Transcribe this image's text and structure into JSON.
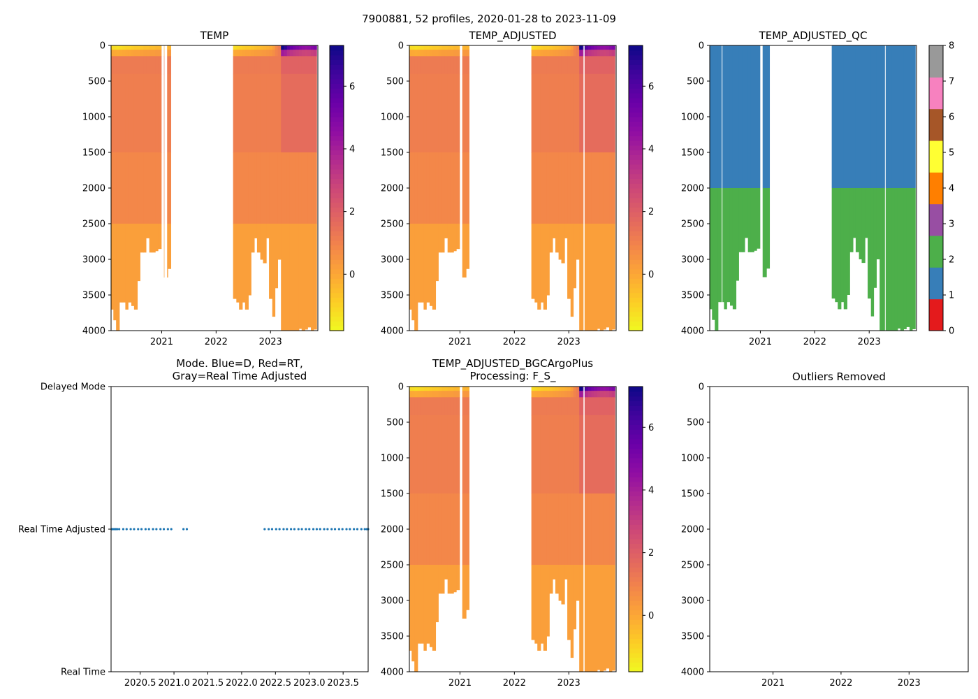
{
  "suptitle": "7900881, 52 profiles, 2020-01-28 to 2023-11-09",
  "colors": {
    "axis": "#000000",
    "mode_dots": "#1f77b4",
    "qc": [
      "#e41a1c",
      "#377eb8",
      "#4daf4a",
      "#984ea3",
      "#ff7f00",
      "#ffff33",
      "#a65628",
      "#f781bf",
      "#999999"
    ]
  },
  "chart_data": [
    {
      "id": "temp",
      "type": "heatmap",
      "title": "TEMP",
      "xlabel": "",
      "ylabel": "",
      "xlim": [
        2020.07,
        2023.87
      ],
      "ylim": [
        4000,
        0
      ],
      "xticks": [
        "2021",
        "2022",
        "2023"
      ],
      "xtick_values": [
        2021,
        2022,
        2023
      ],
      "yticks": [
        "0",
        "500",
        "1000",
        "1500",
        "2000",
        "2500",
        "3000",
        "3500",
        "4000"
      ],
      "ytick_values": [
        0,
        500,
        1000,
        1500,
        2000,
        2500,
        3000,
        3500,
        4000
      ],
      "colorbar": {
        "cmap": "plasma_r",
        "range": [
          -1.8,
          7.3
        ],
        "ticks": [
          "0",
          "2",
          "4",
          "6"
        ],
        "tick_values": [
          0,
          2,
          4,
          6
        ]
      },
      "profile_dates": [
        2020.08,
        2020.14,
        2020.19,
        2020.25,
        2020.3,
        2020.36,
        2020.41,
        2020.47,
        2020.52,
        2020.58,
        2020.63,
        2020.69,
        2020.74,
        2020.8,
        2020.85,
        2020.91,
        2020.96,
        2021.02,
        2021.07,
        2021.14,
        2022.34,
        2022.4,
        2022.45,
        2022.51,
        2022.56,
        2022.62,
        2022.67,
        2022.73,
        2022.78,
        2022.84,
        2022.89,
        2022.95,
        2023.0,
        2023.06,
        2023.11,
        2023.16,
        2023.22,
        2023.27,
        2023.33,
        2023.38,
        2023.44,
        2023.49,
        2023.55,
        2023.6,
        2023.66,
        2023.71,
        2023.77,
        2023.82
      ],
      "max_depth": [
        3700,
        3850,
        4000,
        3600,
        3600,
        3700,
        3600,
        3650,
        3700,
        3300,
        2900,
        2900,
        2700,
        2900,
        2900,
        2880,
        2850,
        null,
        3250,
        3130,
        3550,
        3600,
        3700,
        3600,
        3700,
        3500,
        2900,
        2700,
        2900,
        3000,
        3050,
        2700,
        3550,
        3800,
        3400,
        3000,
        4000,
        4000,
        4000,
        4000,
        4000,
        4000,
        3970,
        4000,
        3980,
        3950,
        4000,
        3980
      ],
      "surface_temp": [
        -1.2,
        -1.2,
        -1.3,
        -1.2,
        -1.1,
        -1.0,
        -1.0,
        -0.9,
        -0.8,
        -0.8,
        -0.7,
        -0.6,
        -0.6,
        -0.5,
        -0.5,
        -0.4,
        -0.4,
        null,
        -0.3,
        -0.3,
        -1.2,
        -1.1,
        -1.0,
        -0.9,
        -0.8,
        -0.8,
        -0.7,
        -0.6,
        -0.5,
        -0.4,
        -0.3,
        -0.2,
        -0.1,
        0.2,
        0.8,
        1.2,
        7.3,
        6.8,
        6.0,
        5.5,
        5.2,
        5.0,
        4.8,
        4.6,
        4.5,
        4.6,
        4.8,
        5.0
      ],
      "mid_temp": 1.1,
      "deep_temp": 0.2,
      "gaps": [
        [
          2021.05,
          2021.1
        ]
      ]
    },
    {
      "id": "temp_adjusted",
      "type": "heatmap",
      "title": "TEMP_ADJUSTED",
      "xlim": [
        2020.07,
        2023.87
      ],
      "ylim": [
        4000,
        0
      ],
      "xticks": [
        "2021",
        "2022",
        "2023"
      ],
      "xtick_values": [
        2021,
        2022,
        2023
      ],
      "yticks": [
        "0",
        "500",
        "1000",
        "1500",
        "2000",
        "2500",
        "3000",
        "3500",
        "4000"
      ],
      "ytick_values": [
        0,
        500,
        1000,
        1500,
        2000,
        2500,
        3000,
        3500,
        4000
      ],
      "colorbar": {
        "cmap": "plasma_r",
        "range": [
          -1.8,
          7.3
        ],
        "ticks": [
          "0",
          "2",
          "4",
          "6"
        ],
        "tick_values": [
          0,
          2,
          4,
          6
        ]
      },
      "gaps": [
        [
          2023.27,
          2023.29
        ]
      ]
    },
    {
      "id": "temp_adjusted_qc",
      "type": "heatmap",
      "title": "TEMP_ADJUSTED_QC",
      "xlim": [
        2020.07,
        2023.87
      ],
      "ylim": [
        4000,
        0
      ],
      "xticks": [
        "2021",
        "2022",
        "2023"
      ],
      "xtick_values": [
        2021,
        2022,
        2023
      ],
      "yticks": [
        "0",
        "500",
        "1000",
        "1500",
        "2000",
        "2500",
        "3000",
        "3500",
        "4000"
      ],
      "ytick_values": [
        0,
        500,
        1000,
        1500,
        2000,
        2500,
        3000,
        3500,
        4000
      ],
      "qc_split_depth": 2000,
      "upper_flag": 1,
      "lower_flag": 2,
      "colorbar": {
        "type": "categorical",
        "range": [
          0,
          8
        ],
        "ticks": [
          "0",
          "1",
          "2",
          "3",
          "4",
          "5",
          "6",
          "7",
          "8"
        ],
        "tick_values": [
          0,
          1,
          2,
          3,
          4,
          5,
          6,
          7,
          8
        ]
      },
      "gaps": [
        [
          2020.29,
          2020.3
        ],
        [
          2023.29,
          2023.3
        ]
      ]
    },
    {
      "id": "mode",
      "type": "scatter",
      "title": "Mode. Blue=D, Red=RT,",
      "title2": "Gray=Real Time Adjusted",
      "xlim": [
        2020.07,
        2023.87
      ],
      "ylim": [
        0,
        2
      ],
      "xticks": [
        "2020.5",
        "2021.0",
        "2021.5",
        "2022.0",
        "2022.5",
        "2023.0",
        "2023.5"
      ],
      "xtick_values": [
        2020.5,
        2021.0,
        2021.5,
        2022.0,
        2022.5,
        2023.0,
        2023.5
      ],
      "yticks": [
        "Real Time",
        "Real Time Adjusted",
        "Delayed Mode"
      ],
      "ytick_values": [
        0,
        1,
        2
      ],
      "x": [
        2020.08,
        2020.1,
        2020.12,
        2020.14,
        2020.16,
        2020.19,
        2020.25,
        2020.3,
        2020.36,
        2020.41,
        2020.47,
        2020.52,
        2020.58,
        2020.63,
        2020.69,
        2020.74,
        2020.8,
        2020.85,
        2020.91,
        2020.96,
        2021.14,
        2021.19,
        2022.34,
        2022.4,
        2022.45,
        2022.51,
        2022.56,
        2022.62,
        2022.67,
        2022.73,
        2022.78,
        2022.84,
        2022.89,
        2022.95,
        2023.0,
        2023.06,
        2023.11,
        2023.16,
        2023.22,
        2023.27,
        2023.33,
        2023.38,
        2023.44,
        2023.49,
        2023.55,
        2023.6,
        2023.66,
        2023.71,
        2023.77,
        2023.82,
        2023.85,
        2023.87
      ],
      "y_value": 1
    },
    {
      "id": "bgc",
      "type": "heatmap",
      "title": "TEMP_ADJUSTED_BGCArgoPlus",
      "title2": "Processing: F_S_",
      "xlim": [
        2020.07,
        2023.87
      ],
      "ylim": [
        4000,
        0
      ],
      "xticks": [
        "2021",
        "2022",
        "2023"
      ],
      "xtick_values": [
        2021,
        2022,
        2023
      ],
      "yticks": [
        "0",
        "500",
        "1000",
        "1500",
        "2000",
        "2500",
        "3000",
        "3500",
        "4000"
      ],
      "ytick_values": [
        0,
        500,
        1000,
        1500,
        2000,
        2500,
        3000,
        3500,
        4000
      ],
      "colorbar": {
        "cmap": "plasma_r",
        "range": [
          -1.8,
          7.3
        ],
        "ticks": [
          "0",
          "2",
          "4",
          "6"
        ],
        "tick_values": [
          0,
          2,
          4,
          6
        ]
      },
      "gaps": [
        [
          2023.27,
          2023.29
        ]
      ]
    },
    {
      "id": "outliers",
      "type": "heatmap",
      "title": "Outliers Removed",
      "xlim": [
        2020.07,
        2023.87
      ],
      "ylim": [
        4000,
        0
      ],
      "xticks": [
        "2021",
        "2022",
        "2023"
      ],
      "xtick_values": [
        2021,
        2022,
        2023
      ],
      "yticks": [
        "0",
        "500",
        "1000",
        "1500",
        "2000",
        "2500",
        "3000",
        "3500",
        "4000"
      ],
      "ytick_values": [
        0,
        500,
        1000,
        1500,
        2000,
        2500,
        3000,
        3500,
        4000
      ],
      "empty": true
    }
  ]
}
